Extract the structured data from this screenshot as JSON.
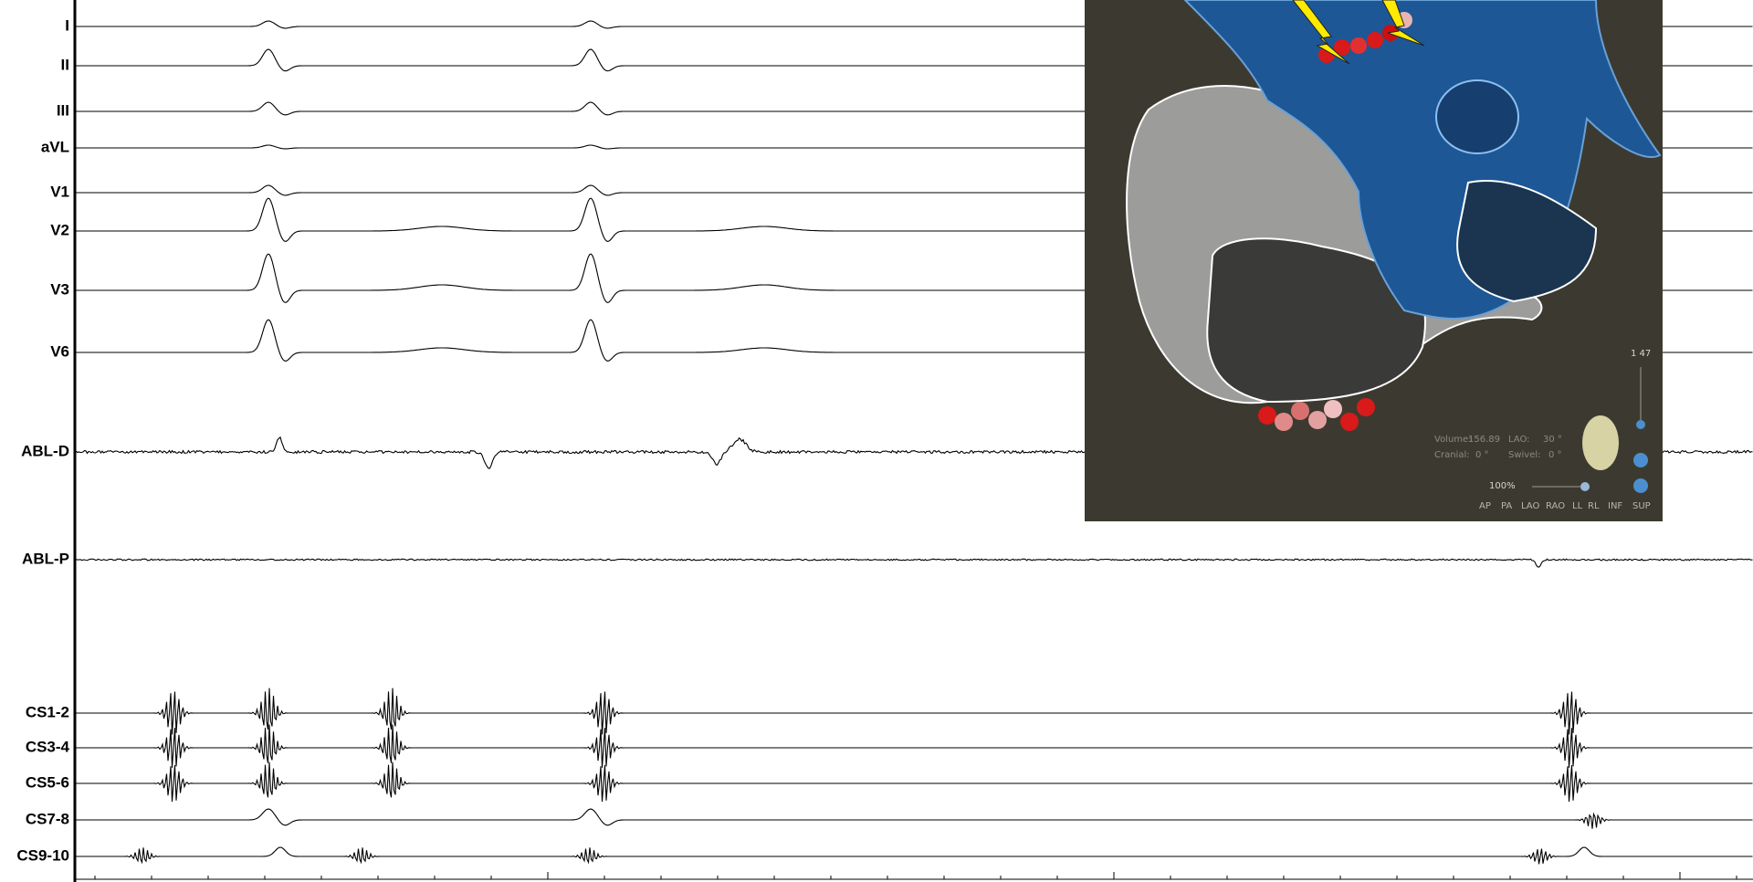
{
  "channels": [
    "I",
    "II",
    "III",
    "aVL",
    "V1",
    "V2",
    "V3",
    "V6",
    "ABL-D",
    "ABL-P",
    "CS1-2",
    "CS3-4",
    "CS5-6",
    "CS7-8",
    "CS9-10"
  ],
  "map_panel": {
    "zoom_value": "1 47",
    "volume_label": "Volume:",
    "volume_value": "156.89",
    "lao_label": "LAO:",
    "lao_value": "30 °",
    "cranial_label": "Cranial:",
    "cranial_value": "0 °",
    "swivel_label": "Swivel:",
    "swivel_value": "0 °",
    "zoom_percent": "100%",
    "views": [
      "AP",
      "PA",
      "LAO",
      "RAO",
      "LL",
      "RL",
      "INF",
      "SUP"
    ]
  }
}
